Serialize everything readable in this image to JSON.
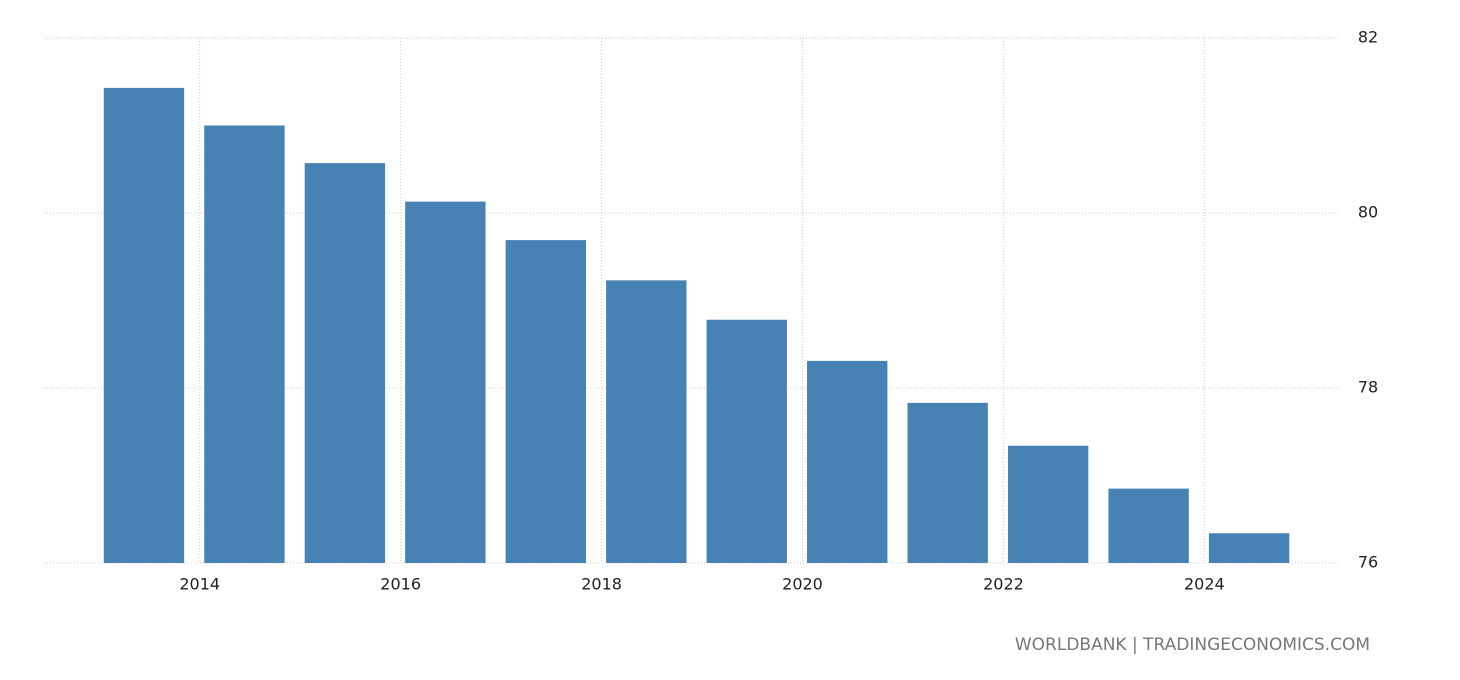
{
  "chart_data": {
    "type": "bar",
    "x": [
      2013,
      2014,
      2015,
      2016,
      2017,
      2018,
      2019,
      2020,
      2021,
      2022,
      2023,
      2024
    ],
    "values": [
      81.43,
      81.0,
      80.57,
      80.13,
      79.69,
      79.23,
      78.78,
      78.31,
      77.83,
      77.34,
      76.85,
      76.34
    ],
    "color": "#4682b4",
    "xlim": [
      2012.45,
      2025.35
    ],
    "xticks": [
      2014,
      2016,
      2018,
      2020,
      2022,
      2024
    ],
    "ylim": [
      76,
      82
    ],
    "yticks": [
      76,
      78,
      80,
      82
    ],
    "grid": true,
    "source": "WORLDBANK | TRADINGECONOMICS.COM"
  }
}
